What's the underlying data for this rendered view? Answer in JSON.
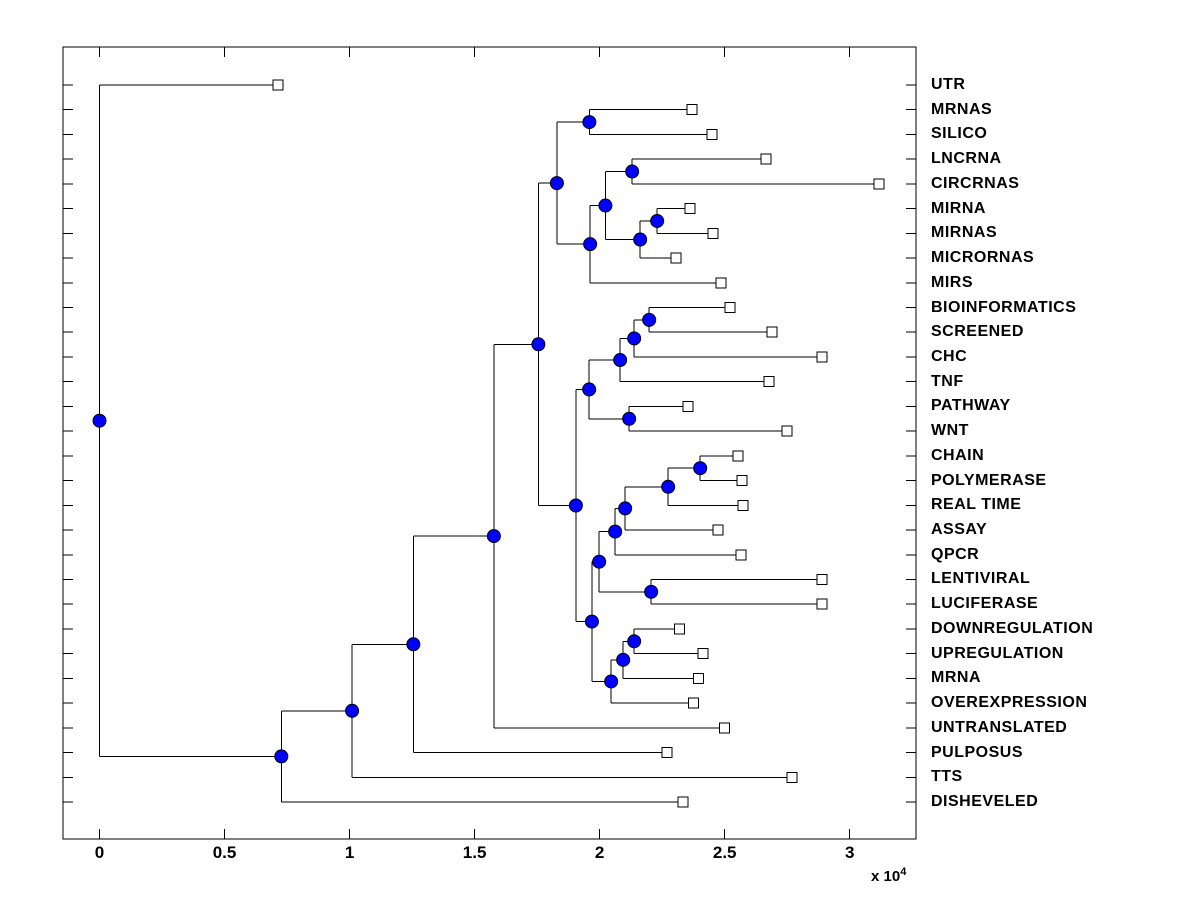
{
  "figure": {
    "background": "#ffffff",
    "axis_multiplier": {
      "base": "x 10",
      "exponent": "4"
    }
  },
  "chart_data": {
    "type": "dendrogram",
    "orientation": "left-to-right",
    "title": "",
    "x_axis": {
      "xlim": [
        -1460,
        32650
      ],
      "tick_values": [
        0,
        5000,
        10000,
        15000,
        20000,
        25000,
        30000
      ],
      "tick_labels": [
        "0",
        "0.5",
        "1",
        "1.5",
        "2",
        "2.5",
        "3"
      ],
      "multiplier_text": "x 10^4"
    },
    "leaves": [
      {
        "name": "UTR",
        "x": 7140
      },
      {
        "name": "MRNAS",
        "x": 23700
      },
      {
        "name": "SILICO",
        "x": 24500
      },
      {
        "name": "LNCRNA",
        "x": 26660
      },
      {
        "name": "CIRCRNAS",
        "x": 31180
      },
      {
        "name": "MIRNA",
        "x": 23620
      },
      {
        "name": "MIRNAS",
        "x": 24540
      },
      {
        "name": "MICRORNAS",
        "x": 23060
      },
      {
        "name": "MIRS",
        "x": 24860
      },
      {
        "name": "BIOINFORMATICS",
        "x": 25220
      },
      {
        "name": "SCREENED",
        "x": 26900
      },
      {
        "name": "CHC",
        "x": 28900
      },
      {
        "name": "TNF",
        "x": 26780
      },
      {
        "name": "PATHWAY",
        "x": 23540
      },
      {
        "name": "WNT",
        "x": 27500
      },
      {
        "name": "CHAIN",
        "x": 25540
      },
      {
        "name": "POLYMERASE",
        "x": 25690
      },
      {
        "name": "REAL TIME",
        "x": 25730
      },
      {
        "name": "ASSAY",
        "x": 24730
      },
      {
        "name": "QPCR",
        "x": 25660
      },
      {
        "name": "LENTIVIRAL",
        "x": 28900
      },
      {
        "name": "LUCIFERASE",
        "x": 28900
      },
      {
        "name": "DOWNREGULATION",
        "x": 23190
      },
      {
        "name": "UPREGULATION",
        "x": 24130
      },
      {
        "name": "MRNA",
        "x": 23950
      },
      {
        "name": "OVEREXPRESSION",
        "x": 23750
      },
      {
        "name": "UNTRANSLATED",
        "x": 24990
      },
      {
        "name": "PULPOSUS",
        "x": 22690
      },
      {
        "name": "TTS",
        "x": 27700
      },
      {
        "name": "DISHEVELED",
        "x": 23330
      }
    ],
    "internal_nodes": [
      {
        "id": "n-mrnas-silico",
        "x": 19590,
        "children": [
          "MRNAS",
          "SILICO"
        ]
      },
      {
        "id": "n-lncrna-circrnas",
        "x": 21300,
        "children": [
          "LNCRNA",
          "CIRCRNAS"
        ]
      },
      {
        "id": "n-mirna-mirnas",
        "x": 22300,
        "children": [
          "MIRNA",
          "MIRNAS"
        ]
      },
      {
        "id": "n-micrornas",
        "x": 21620,
        "children": [
          "n-mirna-mirnas",
          "MICRORNAS"
        ]
      },
      {
        "id": "n-rna-mid",
        "x": 20230,
        "children": [
          "n-lncrna-circrnas",
          "n-micrornas"
        ]
      },
      {
        "id": "n-mirs",
        "x": 19620,
        "children": [
          "n-rna-mid",
          "MIRS"
        ]
      },
      {
        "id": "n-top-cluster",
        "x": 18290,
        "children": [
          "n-mrnas-silico",
          "n-mirs"
        ]
      },
      {
        "id": "n-bioinf-screened",
        "x": 21980,
        "children": [
          "BIOINFORMATICS",
          "SCREENED"
        ]
      },
      {
        "id": "n-chc",
        "x": 21380,
        "children": [
          "n-bioinf-screened",
          "CHC"
        ]
      },
      {
        "id": "n-tnf",
        "x": 20820,
        "children": [
          "n-chc",
          "TNF"
        ]
      },
      {
        "id": "n-pathway-wnt",
        "x": 21180,
        "children": [
          "PATHWAY",
          "WNT"
        ]
      },
      {
        "id": "n-mid-cluster",
        "x": 19580,
        "children": [
          "n-tnf",
          "n-pathway-wnt"
        ]
      },
      {
        "id": "n-chain-polymerase",
        "x": 24020,
        "children": [
          "CHAIN",
          "POLYMERASE"
        ]
      },
      {
        "id": "n-realtime",
        "x": 22740,
        "children": [
          "n-chain-polymerase",
          "REAL TIME"
        ]
      },
      {
        "id": "n-assay",
        "x": 21020,
        "children": [
          "n-realtime",
          "ASSAY"
        ]
      },
      {
        "id": "n-qpcr",
        "x": 20620,
        "children": [
          "n-assay",
          "QPCR"
        ]
      },
      {
        "id": "n-lenti-luci",
        "x": 22060,
        "children": [
          "LENTIVIRAL",
          "LUCIFERASE"
        ]
      },
      {
        "id": "n-pcr-cluster",
        "x": 19980,
        "children": [
          "n-qpcr",
          "n-lenti-luci"
        ]
      },
      {
        "id": "n-down-up",
        "x": 21380,
        "children": [
          "DOWNREGULATION",
          "UPREGULATION"
        ]
      },
      {
        "id": "n-mrna",
        "x": 20940,
        "children": [
          "n-down-up",
          "MRNA"
        ]
      },
      {
        "id": "n-overexpr",
        "x": 20460,
        "children": [
          "n-mrna",
          "OVEREXPRESSION"
        ]
      },
      {
        "id": "n-reg-cluster",
        "x": 19690,
        "children": [
          "n-pcr-cluster",
          "n-overexpr"
        ]
      },
      {
        "id": "n-mid-reg",
        "x": 19050,
        "children": [
          "n-mid-cluster",
          "n-reg-cluster"
        ]
      },
      {
        "id": "n-upper-main",
        "x": 17550,
        "children": [
          "n-top-cluster",
          "n-mid-reg"
        ]
      },
      {
        "id": "n-untranslated",
        "x": 15770,
        "children": [
          "n-upper-main",
          "UNTRANSLATED"
        ]
      },
      {
        "id": "n-pulposus",
        "x": 12550,
        "children": [
          "n-untranslated",
          "PULPOSUS"
        ]
      },
      {
        "id": "n-tts",
        "x": 10100,
        "children": [
          "n-pulposus",
          "TTS"
        ]
      },
      {
        "id": "n-disheveled",
        "x": 7270,
        "children": [
          "n-tts",
          "DISHEVELED"
        ]
      },
      {
        "id": "root",
        "x": 0,
        "children": [
          "UTR",
          "n-disheveled"
        ]
      }
    ],
    "styles": {
      "line_color": "#000000",
      "node_fill": "#0000ff",
      "node_stroke": "#000000",
      "leaf_marker_fill": "#ffffff",
      "leaf_marker_stroke": "#000000",
      "box_color": "#000000"
    }
  }
}
